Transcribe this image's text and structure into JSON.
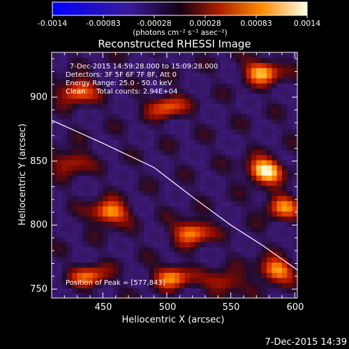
{
  "colorbar": {
    "ticks": [
      "-0.0014",
      "-0.00083",
      "-0.00028",
      "0.00028",
      "0.00083",
      "0.0014"
    ],
    "units_text": "(photons cm⁻² s⁻¹ asec⁻²)"
  },
  "chart_data": {
    "type": "heatmap",
    "title": "Reconstructed RHESSI Image",
    "xlabel": "Heliocentric X (arcsec)",
    "ylabel": "Heliocentric Y (arcsec)",
    "xlim": [
      410,
      602
    ],
    "ylim": [
      743,
      935
    ],
    "x_ticks": [
      450,
      500,
      550,
      600
    ],
    "y_ticks": [
      750,
      800,
      850,
      900
    ],
    "x_tick_labels": [
      "450",
      "500",
      "550",
      "600"
    ],
    "y_tick_labels": [
      "750",
      "800",
      "850",
      "900"
    ],
    "colorbar_range": [
      -0.0014,
      0.0014
    ],
    "limb_curve": [
      [
        410,
        882
      ],
      [
        450,
        864
      ],
      [
        490,
        845
      ],
      [
        520,
        822
      ],
      [
        550,
        800
      ],
      [
        575,
        784
      ],
      [
        602,
        765
      ]
    ],
    "sources": [
      {
        "x": 577,
        "y": 843,
        "peak": 1.0
      },
      {
        "x": 575,
        "y": 920,
        "peak": 0.8
      },
      {
        "x": 590,
        "y": 815,
        "peak": 0.65
      },
      {
        "x": 585,
        "y": 765,
        "peak": 0.75
      },
      {
        "x": 430,
        "y": 905,
        "peak": 0.7
      },
      {
        "x": 500,
        "y": 893,
        "peak": 0.6
      },
      {
        "x": 455,
        "y": 810,
        "peak": 0.8
      },
      {
        "x": 520,
        "y": 795,
        "peak": 0.75
      },
      {
        "x": 505,
        "y": 760,
        "peak": 0.7
      },
      {
        "x": 440,
        "y": 760,
        "peak": 0.6
      },
      {
        "x": 545,
        "y": 755,
        "peak": 0.5
      },
      {
        "x": 425,
        "y": 850,
        "peak": 0.5
      }
    ],
    "annotations": [
      "7-Dec-2015 14:59:28.000 to 15:09:28.000",
      "Detectors: 3F 5F 6F 7F 8F, Att 0",
      "Energy Range: 25.0 - 50.0 keV",
      "Clean     Total counts: 2.94E+04",
      "Position of Peak = [577,843]"
    ],
    "footer_date": "7-Dec-2015 14:39"
  }
}
